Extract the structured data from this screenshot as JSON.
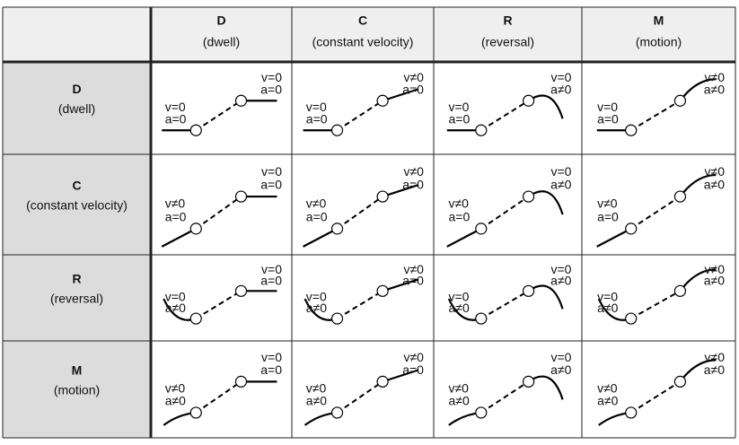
{
  "table": {
    "columns": [
      {
        "letter": "D",
        "label": "(dwell)"
      },
      {
        "letter": "C",
        "label": "(constant velocity)"
      },
      {
        "letter": "R",
        "label": "(reversal)"
      },
      {
        "letter": "M",
        "label": "(motion)"
      }
    ],
    "rows": [
      {
        "letter": "D",
        "label": "(dwell)",
        "cells": [
          {
            "start": [
              "v=0",
              "a=0"
            ],
            "end": [
              "v=0",
              "a=0"
            ]
          },
          {
            "start": [
              "v=0",
              "a=0"
            ],
            "end": [
              "v≠0",
              "a=0"
            ]
          },
          {
            "start": [
              "v=0",
              "a=0"
            ],
            "end": [
              "v=0",
              "a≠0"
            ]
          },
          {
            "start": [
              "v=0",
              "a=0"
            ],
            "end": [
              "v≠0",
              "a≠0"
            ]
          }
        ]
      },
      {
        "letter": "C",
        "label": "(constant velocity)",
        "cells": [
          {
            "start": [
              "v≠0",
              "a=0"
            ],
            "end": [
              "v=0",
              "a=0"
            ]
          },
          {
            "start": [
              "v≠0",
              "a=0"
            ],
            "end": [
              "v≠0",
              "a=0"
            ]
          },
          {
            "start": [
              "v≠0",
              "a=0"
            ],
            "end": [
              "v=0",
              "a≠0"
            ]
          },
          {
            "start": [
              "v≠0",
              "a=0"
            ],
            "end": [
              "v≠0",
              "a≠0"
            ]
          }
        ]
      },
      {
        "letter": "R",
        "label": "(reversal)",
        "cells": [
          {
            "start": [
              "v=0",
              "a≠0"
            ],
            "end": [
              "v=0",
              "a=0"
            ]
          },
          {
            "start": [
              "v=0",
              "a≠0"
            ],
            "end": [
              "v≠0",
              "a=0"
            ]
          },
          {
            "start": [
              "v=0",
              "a≠0"
            ],
            "end": [
              "v=0",
              "a≠0"
            ]
          },
          {
            "start": [
              "v=0",
              "a≠0"
            ],
            "end": [
              "v≠0",
              "a≠0"
            ]
          }
        ]
      },
      {
        "letter": "M",
        "label": "(motion)",
        "cells": [
          {
            "start": [
              "v≠0",
              "a≠0"
            ],
            "end": [
              "v=0",
              "a=0"
            ]
          },
          {
            "start": [
              "v≠0",
              "a≠0"
            ],
            "end": [
              "v≠0",
              "a=0"
            ]
          },
          {
            "start": [
              "v≠0",
              "a≠0"
            ],
            "end": [
              "v=0",
              "a≠0"
            ]
          },
          {
            "start": [
              "v≠0",
              "a≠0"
            ],
            "end": [
              "v≠0",
              "a≠0"
            ]
          }
        ]
      }
    ]
  }
}
